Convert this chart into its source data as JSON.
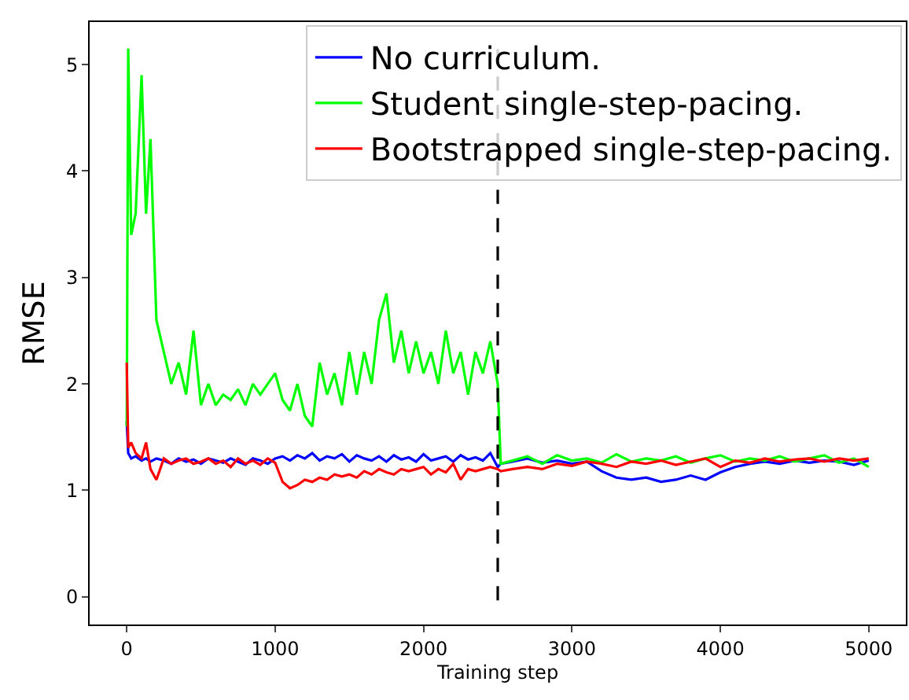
{
  "chart_data": {
    "type": "line",
    "xlabel": "Training step",
    "ylabel": "RMSE",
    "x": [
      0,
      10,
      30,
      60,
      100,
      130,
      160,
      200,
      250,
      300,
      350,
      400,
      450,
      500,
      550,
      600,
      650,
      700,
      750,
      800,
      850,
      900,
      950,
      1000,
      1050,
      1100,
      1150,
      1200,
      1250,
      1300,
      1350,
      1400,
      1450,
      1500,
      1550,
      1600,
      1650,
      1700,
      1750,
      1800,
      1850,
      1900,
      1950,
      2000,
      2050,
      2100,
      2150,
      2200,
      2250,
      2300,
      2350,
      2400,
      2450,
      2500,
      2520,
      2600,
      2700,
      2800,
      2900,
      3000,
      3100,
      3200,
      3300,
      3400,
      3500,
      3600,
      3700,
      3800,
      3900,
      4000,
      4100,
      4200,
      4300,
      4400,
      4500,
      4600,
      4700,
      4800,
      4900,
      5000
    ],
    "series": [
      {
        "name": "No curriculum.",
        "color": "#0000ff",
        "values": [
          1.65,
          1.35,
          1.3,
          1.32,
          1.28,
          1.3,
          1.27,
          1.3,
          1.28,
          1.25,
          1.3,
          1.27,
          1.29,
          1.25,
          1.3,
          1.28,
          1.26,
          1.3,
          1.27,
          1.24,
          1.3,
          1.28,
          1.25,
          1.3,
          1.32,
          1.28,
          1.33,
          1.3,
          1.35,
          1.28,
          1.32,
          1.3,
          1.34,
          1.27,
          1.33,
          1.3,
          1.28,
          1.32,
          1.27,
          1.33,
          1.29,
          1.31,
          1.27,
          1.34,
          1.28,
          1.3,
          1.32,
          1.27,
          1.33,
          1.29,
          1.31,
          1.28,
          1.35,
          1.22,
          1.25,
          1.27,
          1.3,
          1.26,
          1.28,
          1.25,
          1.27,
          1.18,
          1.12,
          1.1,
          1.12,
          1.08,
          1.1,
          1.14,
          1.1,
          1.17,
          1.22,
          1.25,
          1.27,
          1.25,
          1.28,
          1.26,
          1.28,
          1.27,
          1.24,
          1.28
        ]
      },
      {
        "name": "Student single-step-pacing.",
        "color": "#00ff00",
        "values": [
          1.6,
          5.15,
          3.4,
          3.6,
          4.9,
          3.6,
          4.3,
          2.6,
          2.3,
          2.0,
          2.2,
          1.9,
          2.5,
          1.8,
          2.0,
          1.8,
          1.9,
          1.85,
          1.95,
          1.8,
          2.0,
          1.9,
          2.0,
          2.1,
          1.85,
          1.75,
          2.0,
          1.7,
          1.6,
          2.2,
          1.9,
          2.1,
          1.8,
          2.3,
          1.9,
          2.3,
          2.0,
          2.6,
          2.85,
          2.2,
          2.5,
          2.1,
          2.4,
          2.1,
          2.3,
          2.0,
          2.5,
          2.1,
          2.3,
          1.9,
          2.3,
          2.1,
          2.4,
          2.0,
          1.25,
          1.28,
          1.32,
          1.25,
          1.33,
          1.28,
          1.3,
          1.26,
          1.34,
          1.27,
          1.3,
          1.28,
          1.32,
          1.26,
          1.3,
          1.33,
          1.27,
          1.3,
          1.28,
          1.32,
          1.27,
          1.3,
          1.33,
          1.26,
          1.3,
          1.22
        ]
      },
      {
        "name": "Bootstrapped single-step-pacing.",
        "color": "#ff0000",
        "values": [
          2.2,
          1.4,
          1.45,
          1.35,
          1.3,
          1.45,
          1.2,
          1.1,
          1.3,
          1.25,
          1.28,
          1.3,
          1.25,
          1.27,
          1.3,
          1.25,
          1.28,
          1.22,
          1.3,
          1.25,
          1.28,
          1.24,
          1.3,
          1.26,
          1.08,
          1.02,
          1.05,
          1.1,
          1.08,
          1.12,
          1.1,
          1.15,
          1.13,
          1.15,
          1.12,
          1.18,
          1.15,
          1.2,
          1.17,
          1.15,
          1.2,
          1.18,
          1.2,
          1.22,
          1.15,
          1.2,
          1.17,
          1.25,
          1.1,
          1.2,
          1.18,
          1.2,
          1.22,
          1.2,
          1.18,
          1.2,
          1.22,
          1.2,
          1.25,
          1.23,
          1.27,
          1.25,
          1.22,
          1.27,
          1.25,
          1.28,
          1.24,
          1.27,
          1.3,
          1.22,
          1.28,
          1.26,
          1.3,
          1.27,
          1.29,
          1.3,
          1.27,
          1.3,
          1.28,
          1.3
        ]
      }
    ],
    "xlim": [
      -250,
      5250
    ],
    "xticks": [
      0,
      1000,
      2000,
      3000,
      4000,
      5000
    ],
    "ylim": [
      -0.26,
      5.4
    ],
    "yticks": [
      0,
      1,
      2,
      3,
      4,
      5
    ],
    "grid": false,
    "legend": "top right",
    "line_style": "solid",
    "marker": "none",
    "ref_lines": [
      {
        "axis": "x",
        "value": 2500,
        "color": "#000000",
        "line_style": "dashed"
      }
    ]
  }
}
